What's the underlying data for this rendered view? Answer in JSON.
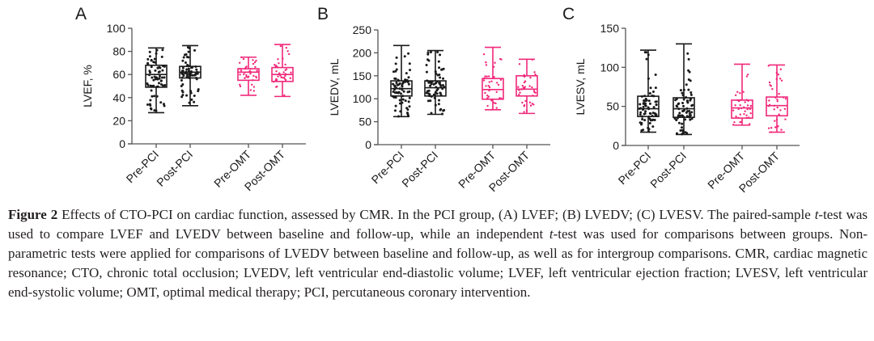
{
  "chart_data": [
    {
      "type": "box",
      "panel": "A",
      "title": "",
      "xlabel": "",
      "ylabel": "LVEF, %",
      "ylim": [
        0,
        100
      ],
      "yticks": [
        0,
        20,
        40,
        60,
        80,
        100
      ],
      "categories": [
        "Pre-PCI",
        "Post-PCI",
        "Pre-OMT",
        "Post-OMT"
      ],
      "groups": [
        "PCI",
        "PCI",
        "OMT",
        "OMT"
      ],
      "series": [
        {
          "name": "Pre-PCI",
          "group": "PCI",
          "min": 27,
          "q1": 49,
          "median": 60,
          "q3": 68,
          "max": 83
        },
        {
          "name": "Post-PCI",
          "group": "PCI",
          "min": 33,
          "q1": 57,
          "median": 62,
          "q3": 67,
          "max": 85
        },
        {
          "name": "Pre-OMT",
          "group": "OMT",
          "min": 42,
          "q1": 55,
          "median": 62,
          "q3": 65,
          "max": 75
        },
        {
          "name": "Post-OMT",
          "group": "OMT",
          "min": 41,
          "q1": 54,
          "median": 60,
          "q3": 66,
          "max": 86
        }
      ],
      "grid": false
    },
    {
      "type": "box",
      "panel": "B",
      "title": "",
      "xlabel": "",
      "ylabel": "LVEDV, mL",
      "ylim": [
        0,
        250
      ],
      "yticks": [
        0,
        50,
        100,
        150,
        200,
        250
      ],
      "categories": [
        "Pre-PCI",
        "Post-PCI",
        "Pre-OMT",
        "Post-OMT"
      ],
      "groups": [
        "PCI",
        "PCI",
        "OMT",
        "OMT"
      ],
      "series": [
        {
          "name": "Pre-PCI",
          "group": "PCI",
          "min": 61,
          "q1": 106,
          "median": 122,
          "q3": 139,
          "max": 216
        },
        {
          "name": "Post-PCI",
          "group": "PCI",
          "min": 66,
          "q1": 106,
          "median": 124,
          "q3": 139,
          "max": 205
        },
        {
          "name": "Pre-OMT",
          "group": "OMT",
          "min": 76,
          "q1": 99,
          "median": 120,
          "q3": 144,
          "max": 212
        },
        {
          "name": "Post-OMT",
          "group": "OMT",
          "min": 68,
          "q1": 106,
          "median": 121,
          "q3": 150,
          "max": 186
        }
      ],
      "grid": false
    },
    {
      "type": "box",
      "panel": "C",
      "title": "",
      "xlabel": "",
      "ylabel": "LVESV, mL",
      "ylim": [
        0,
        150
      ],
      "yticks": [
        0,
        50,
        100,
        150
      ],
      "categories": [
        "Pre-PCI",
        "Post-PCI",
        "Pre-OMT",
        "Post-OMT"
      ],
      "groups": [
        "PCI",
        "PCI",
        "OMT",
        "OMT"
      ],
      "series": [
        {
          "name": "Pre-PCI",
          "group": "PCI",
          "min": 17,
          "q1": 37,
          "median": 47,
          "q3": 63,
          "max": 122
        },
        {
          "name": "Post-PCI",
          "group": "PCI",
          "min": 14,
          "q1": 36,
          "median": 47,
          "q3": 61,
          "max": 130
        },
        {
          "name": "Pre-OMT",
          "group": "OMT",
          "min": 26,
          "q1": 35,
          "median": 48,
          "q3": 58,
          "max": 104
        },
        {
          "name": "Post-OMT",
          "group": "OMT",
          "min": 17,
          "q1": 38,
          "median": 51,
          "q3": 62,
          "max": 103
        }
      ],
      "grid": false
    }
  ],
  "colors": {
    "PCI": "#1a1a1a",
    "OMT": "#f0287a",
    "axis": "#555555"
  },
  "caption": {
    "label": "Figure 2",
    "text": " Effects of CTO-PCI on cardiac function, assessed by CMR. In the PCI group, (A) LVEF; (B) LVEDV; (C) LVESV. The paired-sample t-test was used to compare LVEF and LVEDV between baseline and follow-up, while an independent t-test was used for comparisons between groups. Non-parametric tests were applied for comparisons of LVEDV between baseline and follow-up, as well as for intergroup comparisons. CMR, cardiac magnetic resonance; CTO, chronic total occlusion; LVEDV, left ventricular end-diastolic volume; LVEF, left ventricular ejection fraction; LVESV, left ventricular end-systolic volume; OMT, optimal medical therapy; PCI, percutaneous coronary intervention."
  }
}
